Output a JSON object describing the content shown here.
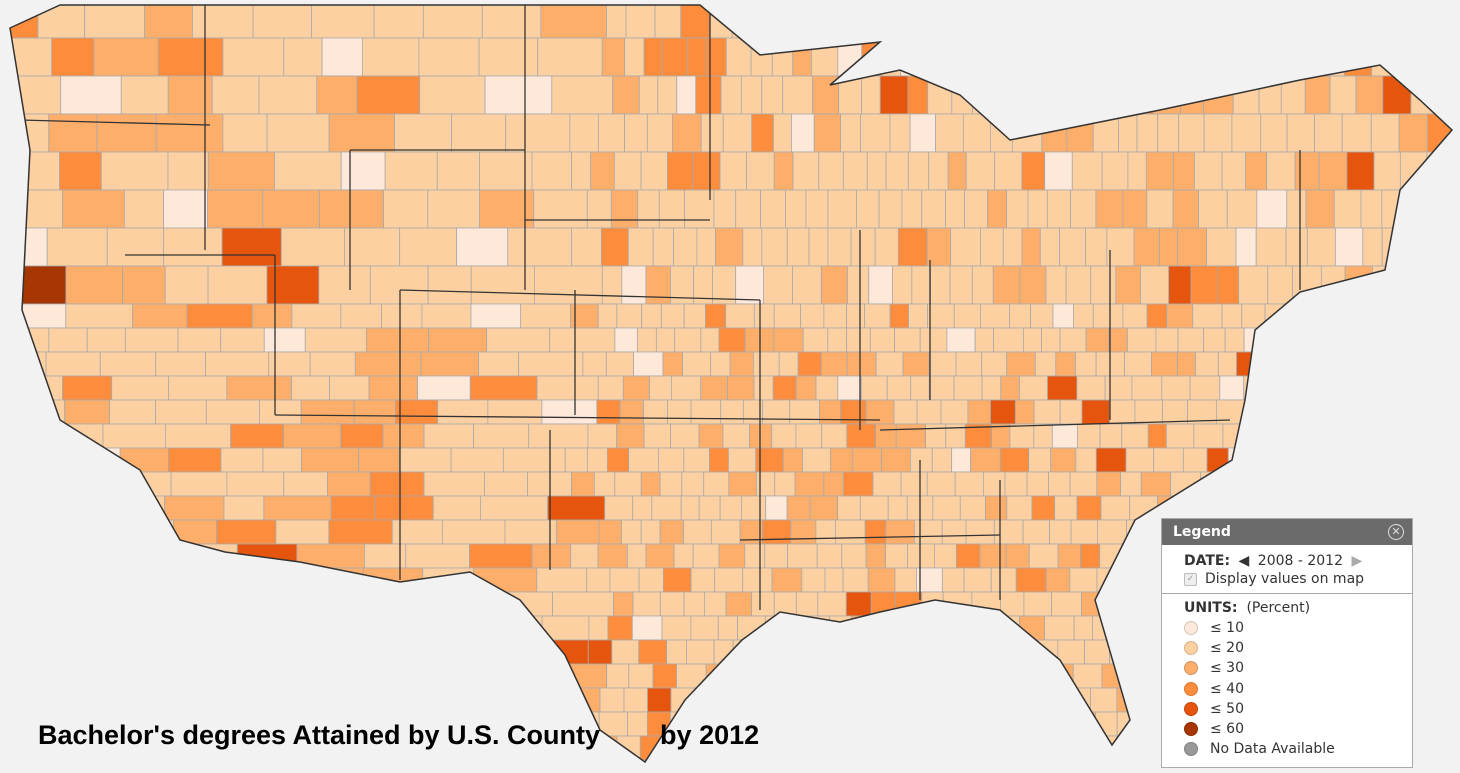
{
  "title": "Bachelor's degrees Attained by U.S. County        by 2012",
  "legend": {
    "header": "Legend",
    "close_icon": "close-circle-icon",
    "date_label": "DATE:",
    "date_value": "2008 - 2012",
    "display_values_label": "Display values on map",
    "display_values_checked": true,
    "units_label": "UNITS:",
    "units_value": "(Percent)",
    "items": [
      {
        "label": "≤ 10",
        "color": "#fde8da"
      },
      {
        "label": "≤ 20",
        "color": "#fdd0a2"
      },
      {
        "label": "≤ 30",
        "color": "#fdae6b"
      },
      {
        "label": "≤ 40",
        "color": "#fd8d3c"
      },
      {
        "label": "≤ 50",
        "color": "#e6550d"
      },
      {
        "label": "≤ 60",
        "color": "#a63603"
      },
      {
        "label": "No Data Available",
        "color": "#999999"
      }
    ]
  },
  "map": {
    "background": "#f2f2f2",
    "county_border": "#aaaaaa",
    "state_border": "#333333"
  }
}
